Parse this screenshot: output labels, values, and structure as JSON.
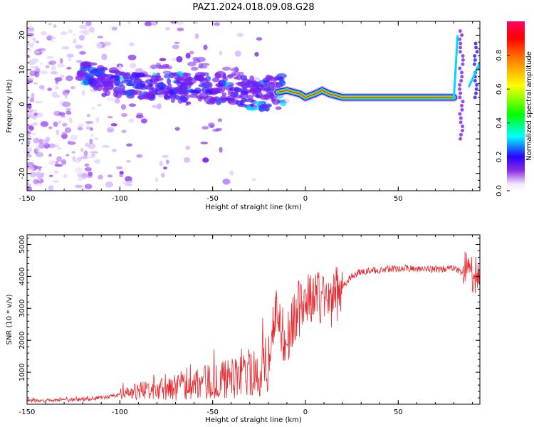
{
  "figure_title": "PAZ1.2024.018.09.08.G28",
  "chart_data": [
    {
      "type": "heatmap",
      "title": "",
      "xlabel": "Height of straight line (km)",
      "ylabel": "Frequency (Hz)",
      "xlim": [
        -150,
        94
      ],
      "ylim": [
        -25,
        24
      ],
      "xticks": [
        -150,
        -100,
        -50,
        0,
        50
      ],
      "yticks": [
        20,
        10,
        0,
        -10,
        -20
      ],
      "colorbar": {
        "label": "Normalized spectral amplitude",
        "range": [
          0,
          1
        ],
        "ticks": [
          0.0,
          0.2,
          0.4,
          0.6,
          0.8
        ],
        "colormap": "white-purple-blue-cyan-green-yellow-red"
      },
      "ridge": [
        {
          "x": -118,
          "y": 9
        },
        {
          "x": -100,
          "y": 6
        },
        {
          "x": -80,
          "y": 5
        },
        {
          "x": -60,
          "y": 5
        },
        {
          "x": -40,
          "y": 4
        },
        {
          "x": -20,
          "y": 3
        },
        {
          "x": -10,
          "y": 4
        },
        {
          "x": -3,
          "y": 3
        },
        {
          "x": 0,
          "y": 2
        },
        {
          "x": 5,
          "y": 3
        },
        {
          "x": 9,
          "y": 4
        },
        {
          "x": 13,
          "y": 3
        },
        {
          "x": 20,
          "y": 2
        },
        {
          "x": 40,
          "y": 2
        },
        {
          "x": 60,
          "y": 2
        },
        {
          "x": 80,
          "y": 2
        }
      ]
    },
    {
      "type": "line",
      "title": "",
      "xlabel": "Height of straight line (km)",
      "ylabel": "SNR (10 * v/v)",
      "xlim": [
        -150,
        94
      ],
      "ylim": [
        0,
        5300
      ],
      "xticks": [
        -150,
        -100,
        -50,
        0,
        50
      ],
      "yticks": [
        1000,
        2000,
        3000,
        4000,
        5000
      ],
      "line_color": "#e8282d",
      "series": [
        {
          "x": [
            -150,
            -140,
            -130,
            -120,
            -110,
            -100,
            -90,
            -80,
            -70,
            -60,
            -50,
            -40,
            -30,
            -25,
            -20,
            -17,
            -15,
            -12,
            -10,
            -8,
            -5,
            0,
            5,
            10,
            15,
            18,
            20,
            25,
            30,
            40,
            50,
            60,
            70,
            80,
            85,
            88,
            90,
            94
          ],
          "values": [
            110,
            110,
            120,
            150,
            200,
            280,
            380,
            450,
            550,
            650,
            700,
            800,
            900,
            1000,
            1400,
            2600,
            2900,
            2200,
            1800,
            2500,
            2900,
            3200,
            3400,
            3300,
            3300,
            3500,
            3700,
            4000,
            4150,
            4200,
            4250,
            4250,
            4220,
            4250,
            4100,
            4600,
            4000,
            4150
          ]
        }
      ]
    }
  ]
}
